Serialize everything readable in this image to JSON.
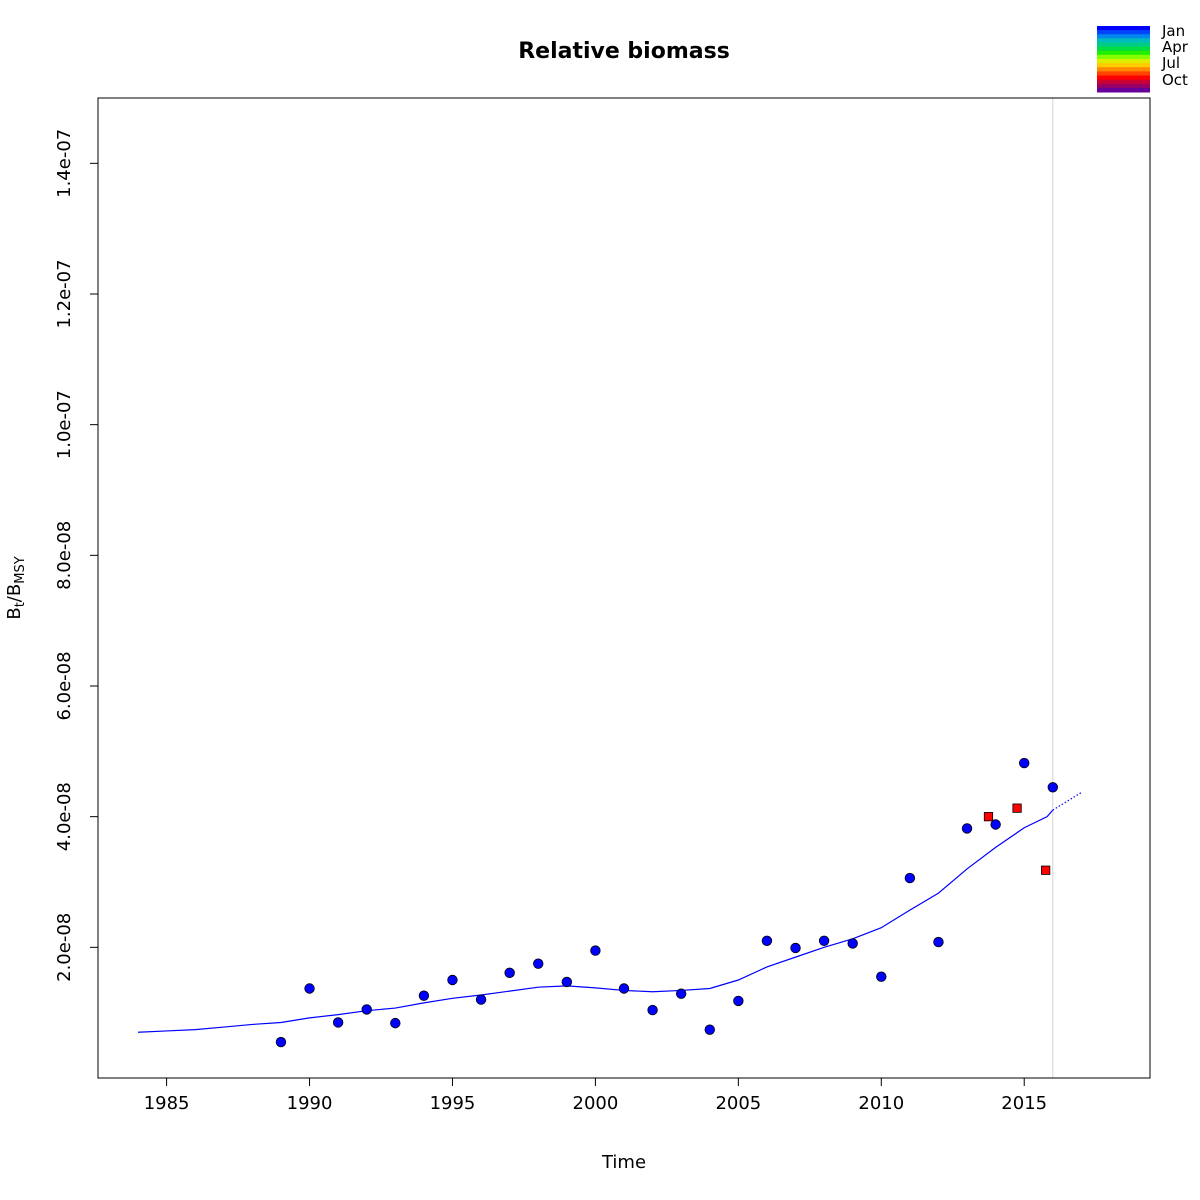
{
  "chart_data": {
    "type": "line",
    "title": "Relative biomass",
    "xlabel": "Time",
    "ylabel": {
      "base": "B",
      "sub1": "t",
      "sep": "/B",
      "sub2": "MSY"
    },
    "xlim": [
      1982.6,
      2019.4
    ],
    "ylim": [
      0,
      1.5e-07
    ],
    "x_ticks": [
      1985,
      1990,
      1995,
      2000,
      2005,
      2010,
      2015
    ],
    "x_tick_labels": [
      "1985",
      "1990",
      "1995",
      "2000",
      "2005",
      "2010",
      "2015"
    ],
    "y_ticks": [
      2e-08,
      4e-08,
      6e-08,
      8e-08,
      1e-07,
      1.2e-07,
      1.4e-07
    ],
    "y_tick_labels": [
      "2.0e-08",
      "4.0e-08",
      "6.0e-08",
      "8.0e-08",
      "1.0e-07",
      "1.2e-07",
      "1.4e-07"
    ],
    "grid": false,
    "vline_x": 2016,
    "colors": {
      "line": "#0000ff",
      "circles": "#0000ff",
      "squares": "#ff0000",
      "vline": "#d3d3d3"
    },
    "series": [
      {
        "style": "line",
        "x": [
          1984,
          1985,
          1986,
          1987,
          1988,
          1989,
          1990,
          1991,
          1992,
          1993,
          1994,
          1995,
          1996,
          1997,
          1998,
          1999,
          2000,
          2001,
          2002,
          2003,
          2004,
          2005,
          2006,
          2007,
          2008,
          2009,
          2010,
          2011,
          2012,
          2013,
          2014,
          2015,
          2015.8,
          2016
        ],
        "values": [
          7e-09,
          7.2e-09,
          7.4e-09,
          7.8e-09,
          8.2e-09,
          8.5e-09,
          9.2e-09,
          9.7e-09,
          1.03e-08,
          1.07e-08,
          1.15e-08,
          1.22e-08,
          1.27e-08,
          1.33e-08,
          1.39e-08,
          1.41e-08,
          1.38e-08,
          1.34e-08,
          1.32e-08,
          1.34e-08,
          1.37e-08,
          1.5e-08,
          1.7e-08,
          1.85e-08,
          2e-08,
          2.13e-08,
          2.3e-08,
          2.57e-08,
          2.83e-08,
          3.2e-08,
          3.53e-08,
          3.83e-08,
          4e-08,
          4.1e-08
        ]
      },
      {
        "style": "dotted",
        "x": [
          2016,
          2017
        ],
        "values": [
          4.1e-08,
          4.37e-08
        ]
      },
      {
        "style": "circles",
        "x": [
          1989,
          1990,
          1991,
          1992,
          1993,
          1994,
          1995,
          1996,
          1997,
          1998,
          1999,
          2000,
          2001,
          2002,
          2003,
          2004,
          2005,
          2006,
          2007,
          2008,
          2009,
          2010,
          2011,
          2012,
          2013,
          2014,
          2015,
          2016
        ],
        "values": [
          5.5e-09,
          1.37e-08,
          8.5e-09,
          1.05e-08,
          8.4e-09,
          1.26e-08,
          1.5e-08,
          1.2e-08,
          1.61e-08,
          1.75e-08,
          1.47e-08,
          1.95e-08,
          1.37e-08,
          1.04e-08,
          1.29e-08,
          7.4e-09,
          1.18e-08,
          2.1e-08,
          1.99e-08,
          2.1e-08,
          2.06e-08,
          1.55e-08,
          3.06e-08,
          2.08e-08,
          3.82e-08,
          3.88e-08,
          4.82e-08,
          4.45e-08
        ]
      },
      {
        "style": "squares",
        "x": [
          2013.75,
          2014.75,
          2015.75
        ],
        "values": [
          4e-08,
          4.13e-08,
          3.18e-08
        ]
      }
    ],
    "legend": {
      "position": "top-right",
      "labels": [
        "Jan",
        "Apr",
        "Jul",
        "Oct"
      ],
      "colors": [
        "#0000ff",
        "#0044ff",
        "#0088ee",
        "#00bbbb",
        "#00cc88",
        "#00dd44",
        "#22ee00",
        "#88ff00",
        "#ddee00",
        "#ffcc00",
        "#ff8800",
        "#ff4400",
        "#ff0000",
        "#cc0033",
        "#990066",
        "#660099"
      ]
    }
  }
}
